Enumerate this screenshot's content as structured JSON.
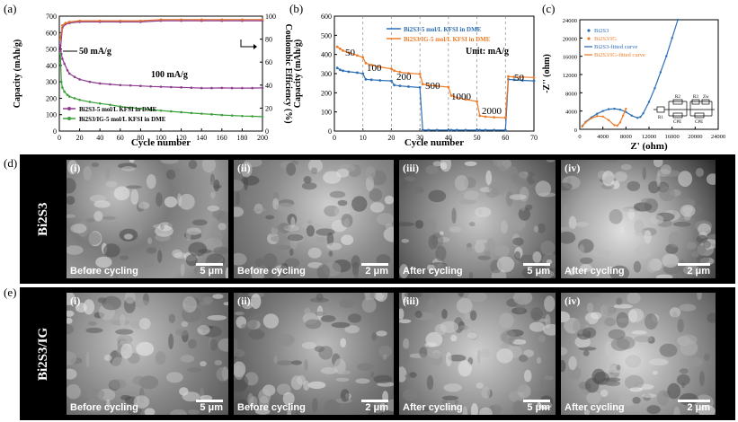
{
  "panels": {
    "a": "(a)",
    "b": "(b)",
    "c": "(c)",
    "d": "(d)",
    "e": "(e)"
  },
  "chart_data": [
    {
      "type": "scatter",
      "panel": "(a)",
      "xlabel": "Cycle number",
      "ylabel": "Capacity (mAh/g)",
      "y2label": "Coulombic Efficiency (%)",
      "xlim": [
        0,
        200
      ],
      "ylim": [
        0,
        700
      ],
      "y2lim": [
        0,
        100
      ],
      "xticks": [
        "0",
        "20",
        "40",
        "60",
        "80",
        "100",
        "120",
        "140",
        "160",
        "180",
        "200"
      ],
      "yticks": [
        "0",
        "100",
        "200",
        "300",
        "400",
        "500",
        "600",
        "700"
      ],
      "y2ticks": [
        "0",
        "20",
        "40",
        "60",
        "80",
        "100"
      ],
      "annotations": [
        "50 mA/g",
        "100 mA/g"
      ],
      "legend": [
        "Bi2S3-5 mol/L KFSI in DME",
        "Bi2S3/IG-5 mol/L KFSI in DME"
      ],
      "series": [
        {
          "name": "Bi2S3-5 mol/L KFSI in DME",
          "color": "#8e3c8e",
          "x": [
            1,
            2,
            3,
            5,
            8,
            10,
            15,
            20,
            30,
            40,
            50,
            60,
            70,
            80,
            90,
            100,
            110,
            120,
            130,
            140,
            150,
            160,
            170,
            180,
            190,
            200
          ],
          "values": [
            520,
            470,
            440,
            410,
            370,
            350,
            330,
            315,
            300,
            290,
            285,
            280,
            278,
            275,
            272,
            270,
            268,
            266,
            264,
            262,
            262,
            263,
            262,
            262,
            262,
            263
          ]
        },
        {
          "name": "Bi2S3/IG-5 mol/L KFSI in DME",
          "color": "#3aa03a",
          "x": [
            1,
            2,
            3,
            5,
            8,
            10,
            15,
            20,
            30,
            40,
            50,
            60,
            70,
            80,
            90,
            100,
            110,
            120,
            130,
            140,
            150,
            160,
            170,
            180,
            190,
            200
          ],
          "values": [
            470,
            300,
            265,
            240,
            220,
            210,
            200,
            190,
            178,
            168,
            160,
            150,
            143,
            137,
            130,
            125,
            120,
            115,
            110,
            106,
            102,
            98,
            95,
            92,
            90,
            88
          ]
        }
      ],
      "efficiency_series": [
        {
          "name": "Bi2S3-5 mol/L KFSI in DME",
          "color": "#8e3c8e",
          "x": [
            1,
            3,
            6,
            10,
            20,
            40,
            60,
            80,
            100,
            120,
            140,
            160,
            180,
            200
          ],
          "values": [
            70,
            90,
            93,
            94,
            95,
            95,
            95,
            95,
            96,
            96,
            96,
            96,
            96,
            96
          ]
        },
        {
          "name": "Bi2S3/IG-5 mol/L KFSI in DME",
          "color": "#e0702a",
          "x": [
            1,
            3,
            6,
            10,
            20,
            40,
            60,
            80,
            100,
            120,
            140,
            160,
            180,
            200
          ],
          "values": [
            80,
            92,
            94,
            95,
            96,
            96,
            96,
            96,
            97,
            97,
            97,
            97,
            97,
            97
          ]
        }
      ]
    },
    {
      "type": "line",
      "panel": "(b)",
      "xlabel": "Cycle number",
      "ylabel": "Capacity (mAh/g)",
      "xlim": [
        0,
        70
      ],
      "ylim": [
        0,
        600
      ],
      "xticks": [
        "0",
        "10",
        "20",
        "30",
        "40",
        "50",
        "60",
        "70"
      ],
      "yticks": [
        "0",
        "100",
        "200",
        "300",
        "400",
        "500",
        "600"
      ],
      "annotations": [
        "50",
        "100",
        "200",
        "500",
        "1000",
        "2000",
        "50",
        "Unit: mA/g"
      ],
      "legend": [
        "Bi2S3-5 mol/L KFSI in DME",
        "Bi2S3/IG-5 mol/L KFSI in DME"
      ],
      "series": [
        {
          "name": "Bi2S3-5 mol/L KFSI in DME",
          "color": "#2e6fb5",
          "x": [
            1,
            2,
            3,
            5,
            8,
            10,
            11,
            13,
            16,
            20,
            21,
            23,
            26,
            30,
            31,
            33,
            36,
            40,
            41,
            43,
            46,
            50,
            51,
            53,
            56,
            60,
            61,
            63,
            66,
            70
          ],
          "values": [
            330,
            320,
            315,
            310,
            305,
            300,
            270,
            268,
            265,
            262,
            240,
            236,
            232,
            228,
            5,
            5,
            5,
            5,
            5,
            5,
            5,
            5,
            5,
            5,
            5,
            5,
            270,
            268,
            265,
            262
          ]
        },
        {
          "name": "Bi2S3/IG-5 mol/L KFSI in DME",
          "color": "#ef7d2a",
          "x": [
            1,
            2,
            3,
            5,
            8,
            10,
            11,
            13,
            16,
            20,
            21,
            23,
            26,
            30,
            31,
            33,
            36,
            40,
            41,
            43,
            46,
            50,
            51,
            53,
            56,
            60,
            61,
            63,
            66,
            70
          ],
          "values": [
            440,
            430,
            420,
            410,
            395,
            385,
            355,
            345,
            335,
            325,
            315,
            308,
            302,
            298,
            245,
            240,
            235,
            230,
            185,
            175,
            165,
            155,
            80,
            75,
            72,
            70,
            285,
            283,
            282,
            280
          ]
        }
      ]
    },
    {
      "type": "scatter",
      "panel": "(c)",
      "xlabel": "Z' (ohm)",
      "ylabel": "-Z'' (ohm)",
      "xlim": [
        0,
        24000
      ],
      "ylim": [
        0,
        24000
      ],
      "xticks": [
        "0",
        "4000",
        "8000",
        "12000",
        "16000",
        "20000",
        "24000"
      ],
      "yticks": [
        "0",
        "4000",
        "8000",
        "12000",
        "16000",
        "20000",
        "24000"
      ],
      "legend": [
        "Bi2S3",
        "Bi2S3/IG",
        "Bi2S3-fitted curve",
        "Bi2S3/IG-fitted curve"
      ],
      "series": [
        {
          "name": "Bi2S3",
          "color": "#2e6fb5",
          "x": [
            500,
            1000,
            2000,
            3000,
            4000,
            5000,
            6000,
            7000,
            8000,
            9000,
            10000,
            10500,
            11000,
            12000,
            13000,
            14000,
            15000,
            16000,
            17000
          ],
          "values": [
            800,
            1600,
            2600,
            3400,
            4000,
            4400,
            4500,
            4300,
            3800,
            3000,
            2500,
            2700,
            3500,
            6000,
            9000,
            12500,
            16000,
            20000,
            24000
          ]
        },
        {
          "name": "Bi2S3/IG",
          "color": "#ef7d2a",
          "x": [
            400,
            1000,
            2000,
            3000,
            4000,
            5000,
            6000,
            6500,
            7000,
            7500,
            8000
          ],
          "values": [
            600,
            1500,
            2400,
            2900,
            2800,
            2000,
            900,
            800,
            1500,
            3000,
            4500
          ]
        }
      ],
      "inset_labels": [
        "R1",
        "R2",
        "CPE",
        "R3",
        "Zw",
        "CPE"
      ]
    }
  ],
  "sem": {
    "d": {
      "row_label": "Bi2S3",
      "tiles": [
        {
          "roman": "(i)",
          "caption": "Before cycling",
          "scale": "5 μm"
        },
        {
          "roman": "(ii)",
          "caption": "Before cycling",
          "scale": "2 μm"
        },
        {
          "roman": "(iii)",
          "caption": "After cycling",
          "scale": "5 μm"
        },
        {
          "roman": "(iv)",
          "caption": "After cycling",
          "scale": "2 μm"
        }
      ]
    },
    "e": {
      "row_label": "Bi2S3/IG",
      "tiles": [
        {
          "roman": "(i)",
          "caption": "Before cycling",
          "scale": "5 μm"
        },
        {
          "roman": "(ii)",
          "caption": "Before cycling",
          "scale": "2 μm"
        },
        {
          "roman": "(iii)",
          "caption": "After cycling",
          "scale": "5 μm"
        },
        {
          "roman": "(iv)",
          "caption": "After cycling",
          "scale": "2 μm"
        }
      ]
    }
  },
  "colors": {
    "purple": "#8e3c8e",
    "green": "#3aa03a",
    "blue": "#2e6fb5",
    "orange": "#ef7d2a"
  }
}
